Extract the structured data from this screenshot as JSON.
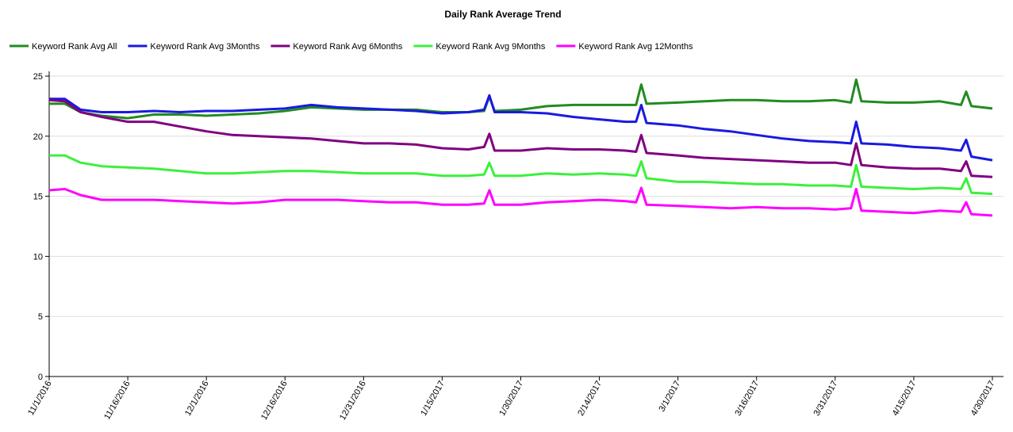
{
  "chart_data": {
    "type": "line",
    "title": "Daily Rank Average Trend",
    "x": [
      "11/1/2016",
      "11/4/2016",
      "11/7/2016",
      "11/11/2016",
      "11/16/2016",
      "11/21/2016",
      "11/26/2016",
      "12/1/2016",
      "12/6/2016",
      "12/11/2016",
      "12/16/2016",
      "12/21/2016",
      "12/26/2016",
      "12/31/2016",
      "1/5/2017",
      "1/10/2017",
      "1/15/2017",
      "1/20/2017",
      "1/23/2017",
      "1/24/2017",
      "1/25/2017",
      "1/30/2017",
      "2/4/2017",
      "2/9/2017",
      "2/14/2017",
      "2/19/2017",
      "2/21/2017",
      "2/22/2017",
      "2/23/2017",
      "3/1/2017",
      "3/6/2017",
      "3/11/2017",
      "3/16/2017",
      "3/21/2017",
      "3/26/2017",
      "3/31/2017",
      "4/3/2017",
      "4/4/2017",
      "4/5/2017",
      "4/10/2017",
      "4/15/2017",
      "4/20/2017",
      "4/24/2017",
      "4/25/2017",
      "4/26/2017",
      "4/30/2017"
    ],
    "series": [
      {
        "name": "Keyword Rank Avg All",
        "color": "#228b22",
        "values": [
          22.7,
          22.7,
          22.0,
          21.7,
          21.5,
          21.8,
          21.8,
          21.7,
          21.8,
          21.9,
          22.1,
          22.4,
          22.3,
          22.2,
          22.2,
          22.2,
          22.0,
          22.0,
          22.1,
          23.3,
          22.1,
          22.2,
          22.5,
          22.6,
          22.6,
          22.6,
          22.6,
          24.3,
          22.7,
          22.8,
          22.9,
          23.0,
          23.0,
          22.9,
          22.9,
          23.0,
          22.8,
          24.7,
          22.9,
          22.8,
          22.8,
          22.9,
          22.6,
          23.7,
          22.5,
          22.3
        ]
      },
      {
        "name": "Keyword Rank Avg 3Months",
        "color": "#1a1adf",
        "values": [
          23.1,
          23.1,
          22.2,
          22.0,
          22.0,
          22.1,
          22.0,
          22.1,
          22.1,
          22.2,
          22.3,
          22.6,
          22.4,
          22.3,
          22.2,
          22.1,
          21.9,
          22.0,
          22.2,
          23.4,
          22.0,
          22.0,
          21.9,
          21.6,
          21.4,
          21.2,
          21.2,
          22.6,
          21.1,
          20.9,
          20.6,
          20.4,
          20.1,
          19.8,
          19.6,
          19.5,
          19.4,
          21.2,
          19.4,
          19.3,
          19.1,
          19.0,
          18.8,
          19.7,
          18.3,
          18.0
        ]
      },
      {
        "name": "Keyword Rank Avg 6Months",
        "color": "#800080",
        "values": [
          23.0,
          22.9,
          22.0,
          21.6,
          21.2,
          21.2,
          20.8,
          20.4,
          20.1,
          20.0,
          19.9,
          19.8,
          19.6,
          19.4,
          19.4,
          19.3,
          19.0,
          18.9,
          19.1,
          20.2,
          18.8,
          18.8,
          19.0,
          18.9,
          18.9,
          18.8,
          18.7,
          20.1,
          18.6,
          18.4,
          18.2,
          18.1,
          18.0,
          17.9,
          17.8,
          17.8,
          17.6,
          19.4,
          17.6,
          17.4,
          17.3,
          17.3,
          17.1,
          17.9,
          16.7,
          16.6
        ]
      },
      {
        "name": "Keyword Rank Avg 9Months",
        "color": "#3cf03c",
        "values": [
          18.4,
          18.4,
          17.8,
          17.5,
          17.4,
          17.3,
          17.1,
          16.9,
          16.9,
          17.0,
          17.1,
          17.1,
          17.0,
          16.9,
          16.9,
          16.9,
          16.7,
          16.7,
          16.8,
          17.8,
          16.7,
          16.7,
          16.9,
          16.8,
          16.9,
          16.8,
          16.7,
          17.9,
          16.5,
          16.2,
          16.2,
          16.1,
          16.0,
          16.0,
          15.9,
          15.9,
          15.8,
          17.6,
          15.8,
          15.7,
          15.6,
          15.7,
          15.6,
          16.5,
          15.3,
          15.2
        ]
      },
      {
        "name": "Keyword Rank Avg 12Months",
        "color": "#ff00ff",
        "values": [
          15.5,
          15.6,
          15.1,
          14.7,
          14.7,
          14.7,
          14.6,
          14.5,
          14.4,
          14.5,
          14.7,
          14.7,
          14.7,
          14.6,
          14.5,
          14.5,
          14.3,
          14.3,
          14.4,
          15.5,
          14.3,
          14.3,
          14.5,
          14.6,
          14.7,
          14.6,
          14.5,
          15.7,
          14.3,
          14.2,
          14.1,
          14.0,
          14.1,
          14.0,
          14.0,
          13.9,
          14.0,
          15.6,
          13.8,
          13.7,
          13.6,
          13.8,
          13.7,
          14.5,
          13.5,
          13.4
        ]
      }
    ],
    "xlim": [
      "11/1/2016",
      "4/30/2017"
    ],
    "xticks": [
      "11/1/2016",
      "11/16/2016",
      "12/1/2016",
      "12/16/2016",
      "12/31/2016",
      "1/15/2017",
      "1/30/2017",
      "2/14/2017",
      "3/1/2017",
      "3/16/2017",
      "3/31/2017",
      "4/15/2017",
      "4/30/2017"
    ],
    "ylim": [
      0,
      25
    ],
    "yticks": [
      0,
      5,
      10,
      15,
      20,
      25
    ],
    "grid": true,
    "legend": "top-left"
  }
}
